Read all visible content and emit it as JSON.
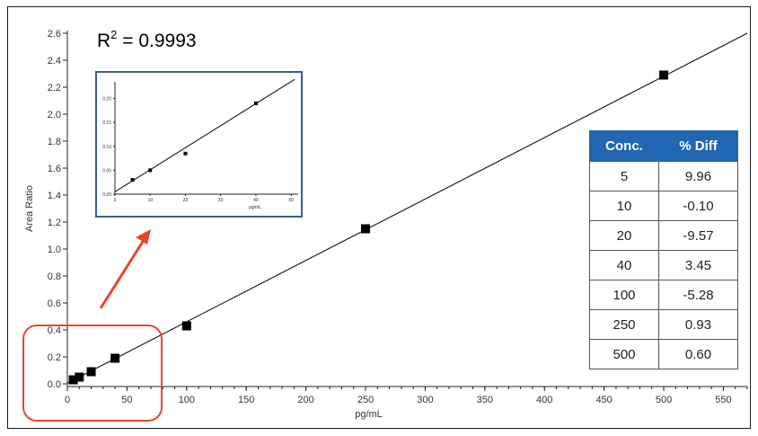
{
  "chart_data": [
    {
      "type": "scatter",
      "title": "",
      "annotation": {
        "text": "R",
        "superscript": "2",
        "suffix": " = 0.9993"
      },
      "xlabel": "pg/mL",
      "ylabel": "Area Ratio",
      "xlim": [
        0,
        570
      ],
      "ylim": [
        -0.02,
        2.62
      ],
      "x_ticks": [
        0,
        50,
        100,
        150,
        200,
        250,
        300,
        350,
        400,
        450,
        500,
        550
      ],
      "y_ticks": [
        "0.0",
        "0.2",
        "0.4",
        "0.6",
        "0.8",
        "1.0",
        "1.2",
        "1.4",
        "1.6",
        "1.8",
        "2.0",
        "2.2",
        "2.4",
        "2.6"
      ],
      "series": [
        {
          "x": [
            5,
            10,
            20,
            40,
            100,
            250,
            500
          ],
          "y": [
            0.03,
            0.05,
            0.09,
            0.19,
            0.43,
            1.15,
            2.29
          ]
        }
      ],
      "fit_line": {
        "x": [
          0,
          570
        ],
        "y": [
          0.005,
          2.6
        ]
      },
      "grid": false
    },
    {
      "type": "scatter",
      "title": "",
      "xlabel": "pg/mL",
      "ylabel": "",
      "xlim": [
        0,
        52
      ],
      "ylim": [
        0,
        0.235
      ],
      "x_ticks": [
        0,
        10,
        20,
        30,
        40,
        50
      ],
      "y_ticks": [
        "0.00",
        "0.05",
        "0.10",
        "0.15",
        "0.20"
      ],
      "series": [
        {
          "x": [
            5,
            10,
            20,
            40
          ],
          "y": [
            0.03,
            0.05,
            0.085,
            0.19
          ]
        }
      ],
      "fit_line": {
        "x": [
          0,
          51
        ],
        "y": [
          0.005,
          0.24
        ]
      },
      "grid": false
    }
  ],
  "table": {
    "headers": [
      "Conc.",
      "% Diff"
    ],
    "rows": [
      [
        "5",
        "9.96"
      ],
      [
        "10",
        "-0.10"
      ],
      [
        "20",
        "-9.57"
      ],
      [
        "40",
        "3.45"
      ],
      [
        "100",
        "-5.28"
      ],
      [
        "250",
        "0.93"
      ],
      [
        "500",
        "0.60"
      ]
    ]
  },
  "colors": {
    "table_header": "#2166b0",
    "inset_border": "#3c5f93",
    "highlight": "#e8452f",
    "marker": "#000000"
  }
}
